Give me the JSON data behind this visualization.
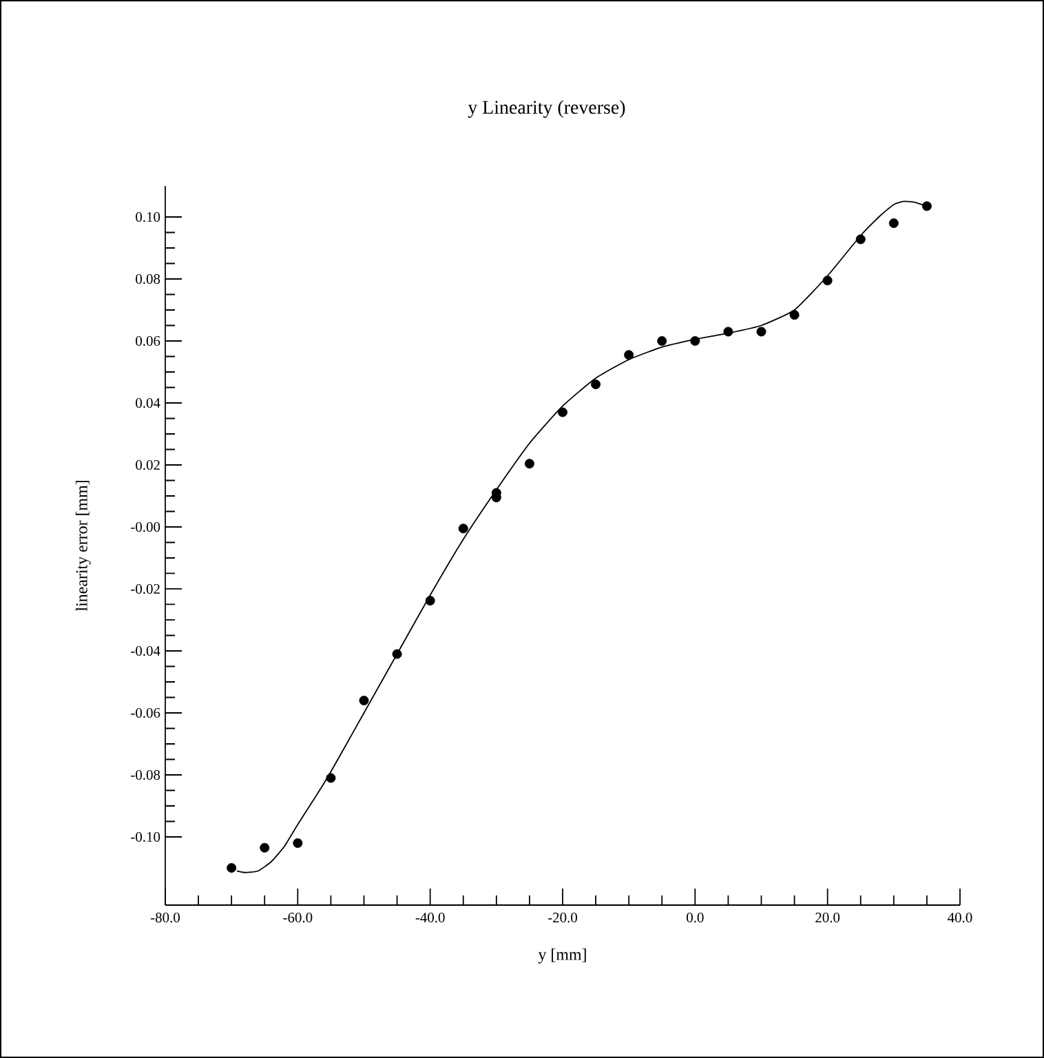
{
  "chart_data": {
    "type": "scatter",
    "title": "y Linearity (reverse)",
    "xlabel": "y  [mm]",
    "ylabel": "linearity error  [mm]",
    "xlim": [
      -80,
      40
    ],
    "ylim": [
      -0.122,
      0.11
    ],
    "xticks": [
      {
        "value": -80,
        "label": "-80.0"
      },
      {
        "value": -60,
        "label": "-60.0"
      },
      {
        "value": -40,
        "label": "-40.0"
      },
      {
        "value": -20,
        "label": "-20.0"
      },
      {
        "value": 0,
        "label": "0.0"
      },
      {
        "value": 20,
        "label": "20.0"
      },
      {
        "value": 40,
        "label": "40.0"
      }
    ],
    "yticks": [
      {
        "value": -0.1,
        "label": "-0.10"
      },
      {
        "value": -0.08,
        "label": "-0.08"
      },
      {
        "value": -0.06,
        "label": "-0.06"
      },
      {
        "value": -0.04,
        "label": "-0.04"
      },
      {
        "value": -0.02,
        "label": "-0.02"
      },
      {
        "value": 0,
        "label": "-0.00"
      },
      {
        "value": 0.02,
        "label": "0.02"
      },
      {
        "value": 0.04,
        "label": "0.04"
      },
      {
        "value": 0.06,
        "label": "0.06"
      },
      {
        "value": 0.08,
        "label": "0.08"
      },
      {
        "value": 0.1,
        "label": "0.10"
      }
    ],
    "marker": "circle",
    "series": [
      {
        "type": "scatter",
        "color": "#000000",
        "x": [
          -70,
          -65,
          -60,
          -55,
          -50,
          -45,
          -40,
          -35,
          -30,
          -30,
          -25,
          -20,
          -15,
          -10,
          -5,
          0,
          5,
          10,
          15,
          20,
          25,
          30,
          35
        ],
        "values": [
          -0.11,
          -0.1035,
          -0.102,
          -0.081,
          -0.056,
          -0.041,
          -0.0238,
          -0.0005,
          0.0095,
          0.011,
          0.0204,
          0.037,
          0.046,
          0.0555,
          0.06,
          0.06,
          0.063,
          0.063,
          0.0684,
          0.0795,
          0.0928,
          0.098,
          0.1035
        ]
      },
      {
        "type": "line",
        "color": "#000000",
        "marker": "none",
        "line_style": "solid",
        "x": [
          -69.2,
          -68,
          -66,
          -64,
          -62,
          -60,
          -57,
          -55,
          -50,
          -45,
          -40,
          -35,
          -30,
          -25,
          -20,
          -15,
          -10,
          -5,
          0,
          5,
          10,
          15,
          20,
          25,
          28,
          30,
          31.5,
          33,
          35
        ],
        "values": [
          -0.111,
          -0.1115,
          -0.111,
          -0.108,
          -0.103,
          -0.096,
          -0.086,
          -0.079,
          -0.06,
          -0.041,
          -0.022,
          -0.004,
          0.012,
          0.027,
          0.039,
          0.048,
          0.054,
          0.058,
          0.0605,
          0.0625,
          0.065,
          0.07,
          0.081,
          0.094,
          0.1005,
          0.104,
          0.105,
          0.1048,
          0.1035
        ]
      }
    ]
  }
}
